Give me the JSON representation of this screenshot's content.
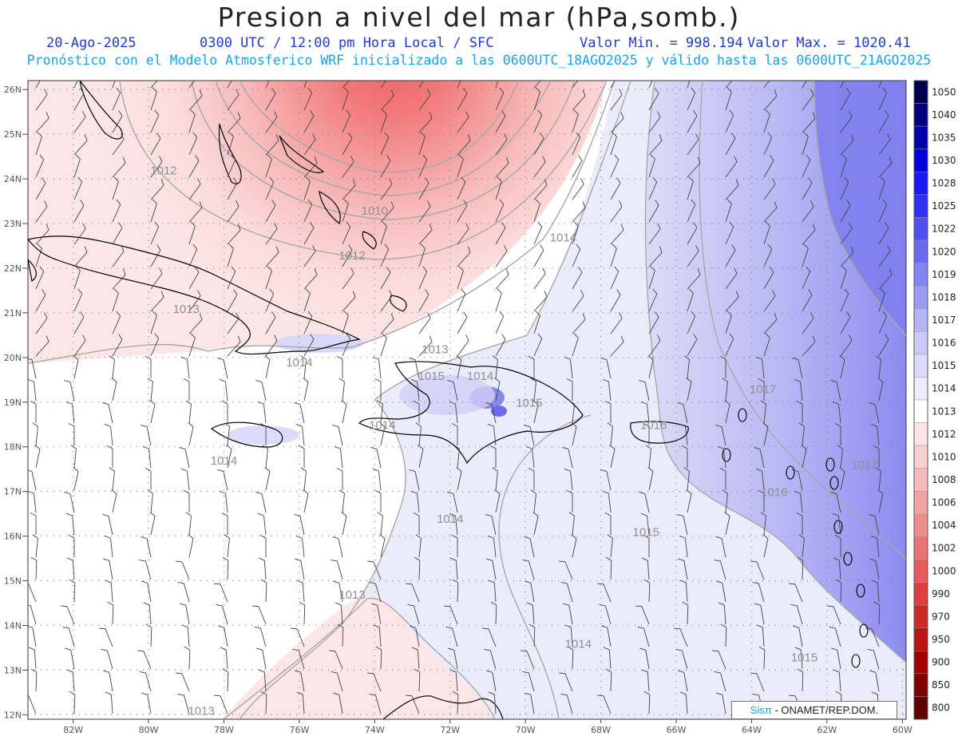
{
  "header": {
    "title": "Presion a nivel del mar (hPa,somb.)",
    "date": "20-Ago-2025",
    "time": "0300 UTC / 12:00 pm Hora Local / SFC",
    "min": "Valor Min. = 998.194",
    "max": "Valor Max. = 1020.41",
    "model_line": "Pronóstico con el Modelo Atmosferico WRF inicializado a las 0600UTC_18AGO2025 y válido hasta las  0600UTC_21AGO2025"
  },
  "axes": {
    "lat_labels": [
      "26N",
      "25N",
      "24N",
      "23N",
      "22N",
      "21N",
      "20N",
      "19N",
      "18N",
      "17N",
      "16N",
      "15N",
      "14N",
      "13N",
      "12N"
    ],
    "lon_labels": [
      "82W",
      "80W",
      "78W",
      "76W",
      "74W",
      "72W",
      "70W",
      "68W",
      "66W",
      "64W",
      "62W",
      "60W"
    ]
  },
  "contour_labels": [
    {
      "text": "1012",
      "lon": -79.6,
      "lat": 24.1
    },
    {
      "text": "1010",
      "lon": -74.0,
      "lat": 23.2
    },
    {
      "text": "1012",
      "lon": -74.6,
      "lat": 22.2
    },
    {
      "text": "1014",
      "lon": -69.0,
      "lat": 22.6
    },
    {
      "text": "1013",
      "lon": -79.0,
      "lat": 21.0
    },
    {
      "text": "1013",
      "lon": -72.4,
      "lat": 20.1
    },
    {
      "text": "1014",
      "lon": -76.0,
      "lat": 19.8
    },
    {
      "text": "1015",
      "lon": -72.5,
      "lat": 19.5
    },
    {
      "text": "1014",
      "lon": -71.2,
      "lat": 19.5
    },
    {
      "text": "1015",
      "lon": -69.9,
      "lat": 18.9
    },
    {
      "text": "1014",
      "lon": -73.8,
      "lat": 18.4
    },
    {
      "text": "1014",
      "lon": -78.0,
      "lat": 17.6
    },
    {
      "text": "1016",
      "lon": -66.6,
      "lat": 18.4
    },
    {
      "text": "1017",
      "lon": -63.7,
      "lat": 19.2
    },
    {
      "text": "1017",
      "lon": -61.0,
      "lat": 17.5
    },
    {
      "text": "1016",
      "lon": -63.4,
      "lat": 16.9
    },
    {
      "text": "1014",
      "lon": -72.0,
      "lat": 16.3
    },
    {
      "text": "1015",
      "lon": -66.8,
      "lat": 16.0
    },
    {
      "text": "1013",
      "lon": -74.6,
      "lat": 14.6
    },
    {
      "text": "1014",
      "lon": -68.6,
      "lat": 13.5
    },
    {
      "text": "1015",
      "lon": -62.6,
      "lat": 13.2
    },
    {
      "text": "1013",
      "lon": -78.6,
      "lat": 12.0
    }
  ],
  "colorbar": {
    "levels": [
      "1050",
      "1040",
      "1035",
      "1030",
      "1028",
      "1025",
      "1022",
      "1020",
      "1019",
      "1018",
      "1017",
      "1016",
      "1015",
      "1014",
      "1013",
      "1012",
      "1010",
      "1008",
      "1006",
      "1004",
      "1002",
      "1000",
      "990",
      "970",
      "950",
      "900",
      "850",
      "800"
    ],
    "colors": [
      "#000050",
      "#000080",
      "#0000a8",
      "#0000d8",
      "#1818f0",
      "#3030f0",
      "#5050f0",
      "#6a6af0",
      "#8484f2",
      "#9c9cf4",
      "#b4b4f6",
      "#cacaf8",
      "#dcdcfa",
      "#ececfd",
      "#ffffff",
      "#fde4e4",
      "#f9d0d0",
      "#f6bcbc",
      "#f2a4a4",
      "#ee8c8c",
      "#ea7474",
      "#e45c5c",
      "#dc4040",
      "#cc2828",
      "#b81414",
      "#a00000",
      "#800000",
      "#600000"
    ]
  },
  "credit": {
    "brand": "Sisπ",
    "text": "- ONAMET/REP.DOM."
  }
}
